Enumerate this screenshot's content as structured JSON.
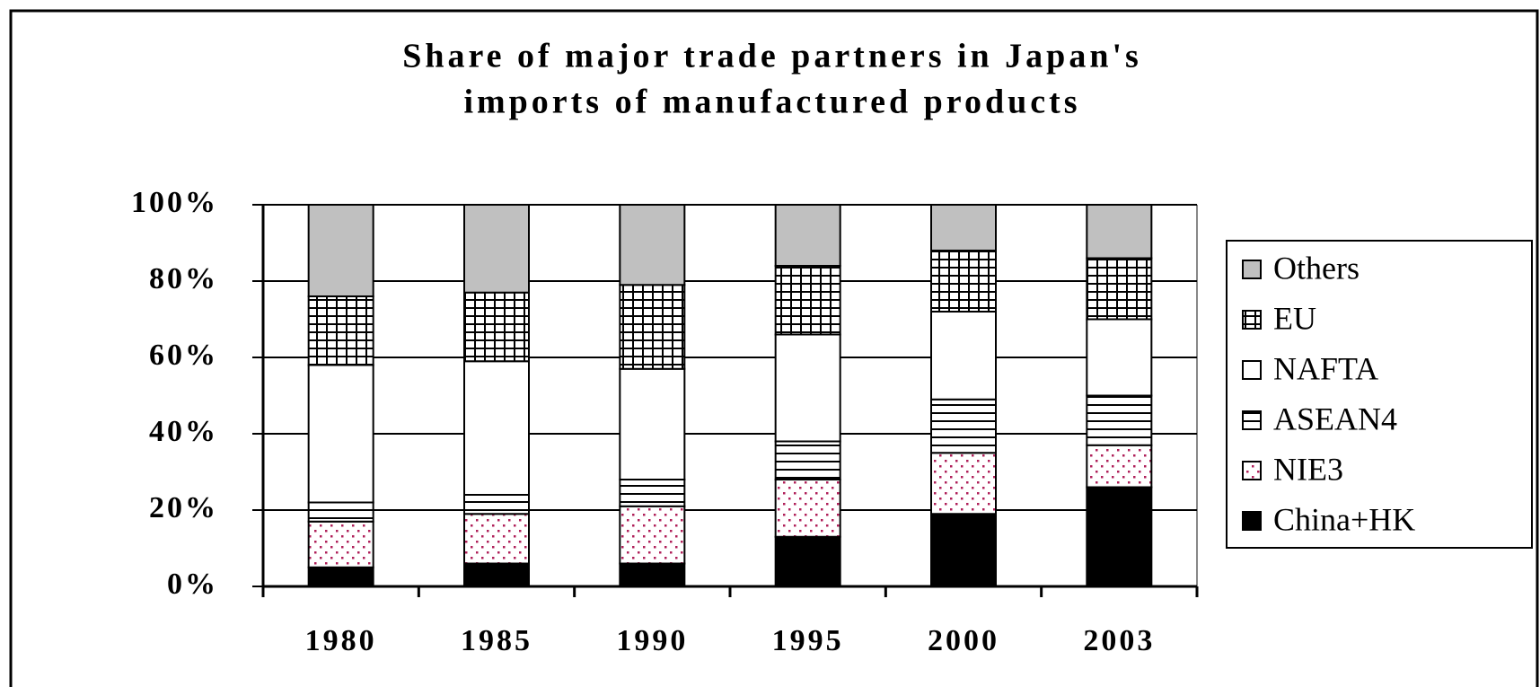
{
  "chart_data": {
    "type": "stacked_bar",
    "title": [
      "Share of major trade partners in Japan's",
      "imports of manufactured products"
    ],
    "categories": [
      "1980",
      "1985",
      "1990",
      "1995",
      "2000",
      "2003"
    ],
    "series": [
      {
        "name": "China+HK",
        "color": "#000000",
        "pattern": "solid",
        "values": [
          5,
          6,
          6,
          13,
          19,
          26
        ]
      },
      {
        "name": "NIE3",
        "color": "#ffffff",
        "pattern": "dots",
        "values": [
          12,
          13,
          15,
          15,
          16,
          11
        ]
      },
      {
        "name": "ASEAN4",
        "color": "#ffffff",
        "pattern": "hlines",
        "values": [
          5,
          5,
          7,
          10,
          14,
          13
        ]
      },
      {
        "name": "NAFTA",
        "color": "#ffffff",
        "pattern": "none",
        "values": [
          36,
          35,
          29,
          28,
          23,
          20
        ]
      },
      {
        "name": "EU",
        "color": "#ffffff",
        "pattern": "grid",
        "values": [
          18,
          18,
          22,
          18,
          16,
          16
        ]
      },
      {
        "name": "Others",
        "color": "#c0c0c0",
        "pattern": "solid",
        "values": [
          24,
          23,
          21,
          16,
          12,
          14
        ]
      }
    ],
    "ylim": [
      0,
      100
    ],
    "yticks": [
      {
        "value": 0,
        "label": "0%"
      },
      {
        "value": 20,
        "label": "20%"
      },
      {
        "value": 40,
        "label": "40%"
      },
      {
        "value": 60,
        "label": "60%"
      },
      {
        "value": 80,
        "label": "80%"
      },
      {
        "value": 100,
        "label": "100%"
      }
    ],
    "grid": true,
    "legend": "right"
  }
}
